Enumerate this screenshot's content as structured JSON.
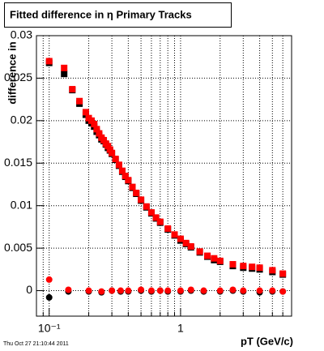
{
  "chart_data": {
    "type": "scatter",
    "title": "Fitted difference in  η  Primary Tracks",
    "y_label": "difference in",
    "x_label": "pT (GeV/c)",
    "footer": "Thu Oct 27 21:10:44 2011",
    "log_x": true,
    "grid": true,
    "xlim": [
      0.08,
      7
    ],
    "ylim": [
      -0.003,
      0.03
    ],
    "xticks": [
      {
        "value": 0.1,
        "label": "10⁻¹"
      },
      1
    ],
    "xminorticks": [
      0.09,
      0.2,
      0.3,
      0.4,
      0.5,
      0.6,
      0.7,
      0.8,
      0.9,
      2,
      3,
      4,
      5,
      6,
      7
    ],
    "yticks": [
      0,
      0.005,
      0.01,
      0.015,
      0.02,
      0.025,
      0.03
    ],
    "series": [
      {
        "color": "#000000",
        "marker": "square",
        "x": [
          0.1,
          0.13,
          0.15,
          0.17,
          0.19,
          0.2,
          0.21,
          0.22,
          0.23,
          0.24,
          0.25,
          0.26,
          0.27,
          0.28,
          0.29,
          0.3,
          0.32,
          0.34,
          0.36,
          0.38,
          0.4,
          0.43,
          0.46,
          0.5,
          0.55,
          0.6,
          0.65,
          0.7,
          0.8,
          0.9,
          1.0,
          1.1,
          1.2,
          1.4,
          1.6,
          1.8,
          2.0,
          2.5,
          3.0,
          3.5,
          4,
          5,
          6
        ],
        "values": [
          0.0268,
          0.0255,
          0.0236,
          0.022,
          0.0207,
          0.02,
          0.0197,
          0.0193,
          0.0187,
          0.0183,
          0.0178,
          0.0176,
          0.0172,
          0.0168,
          0.0165,
          0.0161,
          0.0154,
          0.0147,
          0.014,
          0.0134,
          0.0129,
          0.0121,
          0.0114,
          0.0106,
          0.0098,
          0.0091,
          0.0085,
          0.008,
          0.0072,
          0.0065,
          0.0059,
          0.0055,
          0.0051,
          0.0045,
          0.004,
          0.0036,
          0.0034,
          0.0029,
          0.0027,
          0.0026,
          0.0025,
          0.0022,
          0.0019
        ]
      },
      {
        "color": "#ff0000",
        "marker": "square",
        "x": [
          0.1,
          0.13,
          0.15,
          0.17,
          0.19,
          0.2,
          0.21,
          0.22,
          0.23,
          0.24,
          0.25,
          0.26,
          0.27,
          0.28,
          0.29,
          0.3,
          0.32,
          0.34,
          0.36,
          0.38,
          0.4,
          0.43,
          0.46,
          0.5,
          0.55,
          0.6,
          0.65,
          0.7,
          0.8,
          0.9,
          1.0,
          1.1,
          1.2,
          1.4,
          1.6,
          1.8,
          2.0,
          2.5,
          3.0,
          3.5,
          4,
          5,
          6
        ],
        "values": [
          0.027,
          0.0262,
          0.0237,
          0.0223,
          0.021,
          0.0203,
          0.02,
          0.0196,
          0.019,
          0.0185,
          0.018,
          0.0177,
          0.0173,
          0.017,
          0.0166,
          0.0162,
          0.0155,
          0.0148,
          0.0141,
          0.0135,
          0.013,
          0.0122,
          0.0115,
          0.0107,
          0.0099,
          0.0092,
          0.0086,
          0.0081,
          0.0073,
          0.0066,
          0.0061,
          0.0056,
          0.0052,
          0.0046,
          0.0041,
          0.0038,
          0.0035,
          0.0031,
          0.0029,
          0.0028,
          0.0027,
          0.0024,
          0.002
        ]
      },
      {
        "color": "#000000",
        "marker": "circle",
        "x": [
          0.1,
          0.14,
          0.2,
          0.25,
          0.3,
          0.35,
          0.4,
          0.5,
          0.6,
          0.7,
          0.8,
          1.0,
          1.2,
          1.5,
          2,
          2.5,
          3,
          4,
          5,
          6
        ],
        "values": [
          -0.0008,
          -0.0001,
          -0.0001,
          -0.0002,
          0.0,
          -0.0001,
          -0.0001,
          0.0,
          -0.0001,
          0.0,
          -0.0001,
          -0.0001,
          0.0,
          -0.0001,
          -0.0001,
          0.0,
          -0.0001,
          -0.0002,
          -0.0001,
          -0.0001
        ]
      },
      {
        "color": "#ff0000",
        "marker": "circle",
        "x": [
          0.1,
          0.14,
          0.2,
          0.25,
          0.3,
          0.35,
          0.4,
          0.5,
          0.6,
          0.7,
          0.8,
          1.0,
          1.2,
          1.5,
          2,
          2.5,
          3,
          4,
          5,
          6
        ],
        "values": [
          0.0013,
          0.0001,
          0.0,
          -0.0001,
          0.0,
          0.0,
          0.0,
          0.0001,
          0.0,
          0.0,
          0.0,
          0.0,
          0.0001,
          0.0,
          0.0,
          0.0001,
          0.0,
          0.0,
          0.0,
          -0.0001
        ]
      }
    ]
  }
}
